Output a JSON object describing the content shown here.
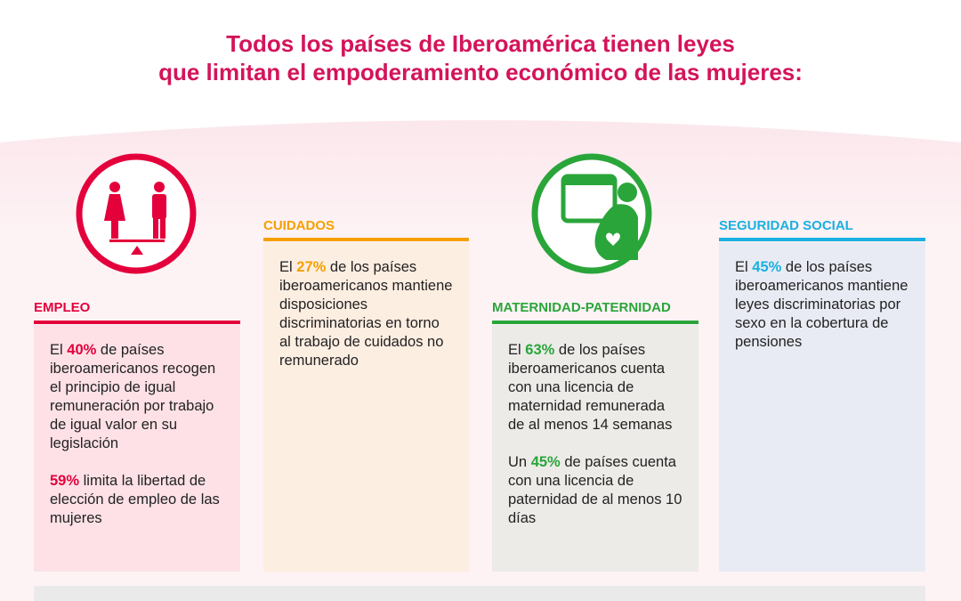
{
  "title": {
    "line1": "Todos los países de Iberoamérica tienen leyes",
    "line2": "que limitan el empoderamiento económico de las mujeres:"
  },
  "sections": [
    {
      "label": "EMPLEO",
      "paragraphs": [
        {
          "lead": "El",
          "percent": "40%",
          "rest": "de países iberoamericanos recogen el principio de igual remuneración por trabajo de igual valor en su legislación"
        },
        {
          "percent": "59%",
          "rest": "limita la libertad de elección de empleo de las mujeres"
        }
      ]
    },
    {
      "label": "CUIDADOS",
      "paragraphs": [
        {
          "lead": "El",
          "percent": "27%",
          "rest": "de los países iberoamericanos mantiene disposiciones discriminatorias en torno al trabajo de cuidados no remunerado"
        }
      ]
    },
    {
      "label": "MATERNIDAD-PATERNIDAD",
      "paragraphs": [
        {
          "lead": "El",
          "percent": "63%",
          "rest": "de los países iberoamericanos cuenta con una licencia de maternidad remunerada de al menos 14 semanas"
        },
        {
          "lead": "Un",
          "percent": "45%",
          "rest": "de países cuenta con una licencia de paternidad de al menos 10 días"
        }
      ]
    },
    {
      "label": "SEGURIDAD SOCIAL",
      "paragraphs": [
        {
          "lead": "El",
          "percent": "45%",
          "rest": "de los países iberoamericanos mantiene leyes discriminatorias por sexo en la cobertura de pensiones"
        }
      ]
    }
  ]
}
